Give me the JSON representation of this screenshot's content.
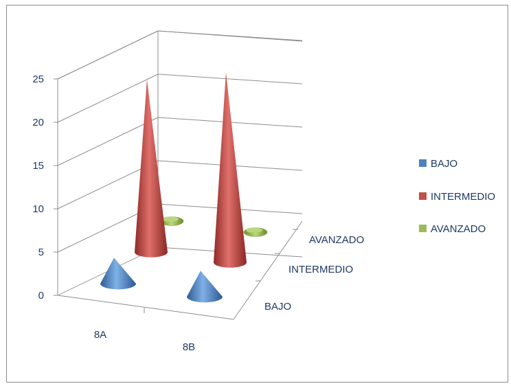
{
  "chart_data": {
    "type": "bar",
    "variant": "3d-cone",
    "categories": [
      "8A",
      "8B"
    ],
    "depth_categories": [
      "BAJO",
      "INTERMEDIO",
      "AVANZADO"
    ],
    "series": [
      {
        "name": "BAJO",
        "color": "#4f81bd",
        "values": [
          3,
          3
        ]
      },
      {
        "name": "INTERMEDIO",
        "color": "#c0504d",
        "values": [
          20,
          22
        ]
      },
      {
        "name": "AVANZADO",
        "color": "#9bbb59",
        "values": [
          0,
          0
        ]
      }
    ],
    "y_ticks": [
      "0",
      "5",
      "10",
      "15",
      "20",
      "25"
    ],
    "ylim": [
      0,
      25
    ],
    "grid": true,
    "legend_position": "right"
  }
}
